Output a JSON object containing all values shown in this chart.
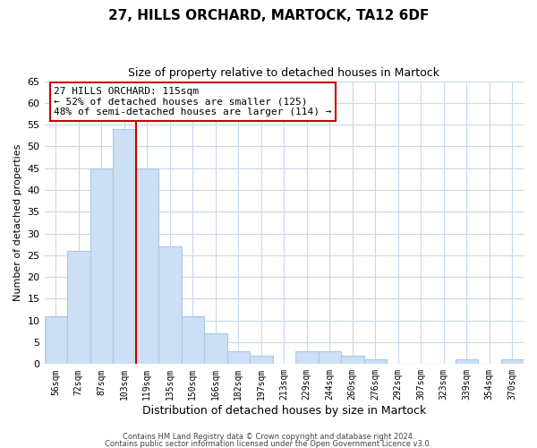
{
  "title": "27, HILLS ORCHARD, MARTOCK, TA12 6DF",
  "subtitle": "Size of property relative to detached houses in Martock",
  "xlabel": "Distribution of detached houses by size in Martock",
  "ylabel": "Number of detached properties",
  "bins": [
    "56sqm",
    "72sqm",
    "87sqm",
    "103sqm",
    "119sqm",
    "135sqm",
    "150sqm",
    "166sqm",
    "182sqm",
    "197sqm",
    "213sqm",
    "229sqm",
    "244sqm",
    "260sqm",
    "276sqm",
    "292sqm",
    "307sqm",
    "323sqm",
    "339sqm",
    "354sqm",
    "370sqm"
  ],
  "values": [
    11,
    26,
    45,
    54,
    45,
    27,
    11,
    7,
    3,
    2,
    0,
    3,
    3,
    2,
    1,
    0,
    0,
    0,
    1,
    0,
    1
  ],
  "bar_color": "#ccdff5",
  "bar_edge_color": "#a8c8e8",
  "vline_x_index": 4,
  "vline_color": "#cc0000",
  "ylim": [
    0,
    65
  ],
  "yticks": [
    0,
    5,
    10,
    15,
    20,
    25,
    30,
    35,
    40,
    45,
    50,
    55,
    60,
    65
  ],
  "annotation_title": "27 HILLS ORCHARD: 115sqm",
  "annotation_line1": "← 52% of detached houses are smaller (125)",
  "annotation_line2": "48% of semi-detached houses are larger (114) →",
  "annotation_box_color": "#ffffff",
  "annotation_box_edge": "#cc0000",
  "footer1": "Contains HM Land Registry data © Crown copyright and database right 2024.",
  "footer2": "Contains public sector information licensed under the Open Government Licence v3.0.",
  "background_color": "#ffffff",
  "grid_color": "#c8d8ec"
}
